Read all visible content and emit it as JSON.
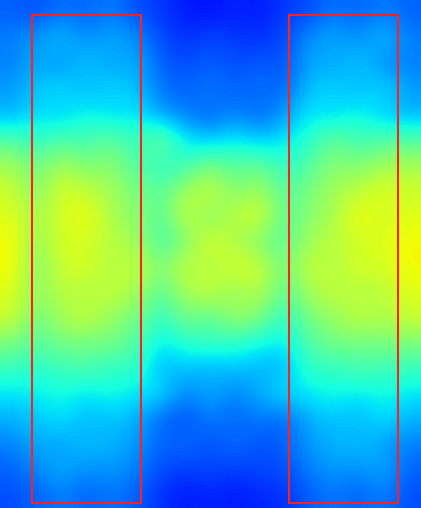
{
  "chart_data": {
    "type": "heatmap",
    "cells": [
      [
        0.22,
        0.2,
        0.24,
        0.22,
        0.25,
        0.2,
        0.18,
        0.15,
        0.14,
        0.16,
        0.15,
        0.18,
        0.2,
        0.24,
        0.22,
        0.25,
        0.22
      ],
      [
        0.25,
        0.28,
        0.32,
        0.26,
        0.3,
        0.27,
        0.2,
        0.17,
        0.2,
        0.18,
        0.17,
        0.2,
        0.27,
        0.3,
        0.26,
        0.32,
        0.25
      ],
      [
        0.25,
        0.3,
        0.26,
        0.33,
        0.28,
        0.3,
        0.22,
        0.2,
        0.22,
        0.2,
        0.22,
        0.2,
        0.3,
        0.28,
        0.33,
        0.26,
        0.25
      ],
      [
        0.28,
        0.32,
        0.35,
        0.3,
        0.34,
        0.32,
        0.24,
        0.22,
        0.25,
        0.22,
        0.24,
        0.22,
        0.32,
        0.34,
        0.3,
        0.35,
        0.28
      ],
      [
        0.3,
        0.35,
        0.32,
        0.38,
        0.33,
        0.36,
        0.28,
        0.25,
        0.22,
        0.26,
        0.22,
        0.28,
        0.36,
        0.33,
        0.38,
        0.32,
        0.3
      ],
      [
        0.45,
        0.4,
        0.45,
        0.42,
        0.48,
        0.4,
        0.5,
        0.35,
        0.32,
        0.36,
        0.32,
        0.35,
        0.4,
        0.48,
        0.42,
        0.45,
        0.45
      ],
      [
        0.55,
        0.48,
        0.55,
        0.5,
        0.52,
        0.45,
        0.4,
        0.42,
        0.5,
        0.45,
        0.48,
        0.4,
        0.45,
        0.52,
        0.5,
        0.55,
        0.55
      ],
      [
        0.6,
        0.5,
        0.62,
        0.58,
        0.55,
        0.5,
        0.45,
        0.55,
        0.6,
        0.5,
        0.55,
        0.45,
        0.5,
        0.55,
        0.58,
        0.62,
        0.6
      ],
      [
        0.62,
        0.55,
        0.6,
        0.65,
        0.55,
        0.52,
        0.45,
        0.6,
        0.5,
        0.58,
        0.62,
        0.45,
        0.52,
        0.55,
        0.65,
        0.6,
        0.62
      ],
      [
        0.65,
        0.52,
        0.62,
        0.6,
        0.58,
        0.55,
        0.42,
        0.5,
        0.62,
        0.55,
        0.5,
        0.45,
        0.55,
        0.58,
        0.6,
        0.62,
        0.65
      ],
      [
        0.65,
        0.5,
        0.6,
        0.62,
        0.55,
        0.6,
        0.5,
        0.6,
        0.55,
        0.62,
        0.6,
        0.48,
        0.6,
        0.55,
        0.62,
        0.6,
        0.65
      ],
      [
        0.62,
        0.52,
        0.58,
        0.55,
        0.6,
        0.55,
        0.45,
        0.55,
        0.6,
        0.52,
        0.58,
        0.45,
        0.55,
        0.6,
        0.55,
        0.58,
        0.62
      ],
      [
        0.6,
        0.48,
        0.55,
        0.6,
        0.52,
        0.5,
        0.4,
        0.5,
        0.45,
        0.55,
        0.5,
        0.4,
        0.5,
        0.52,
        0.6,
        0.55,
        0.6
      ],
      [
        0.5,
        0.45,
        0.5,
        0.48,
        0.5,
        0.45,
        0.35,
        0.4,
        0.42,
        0.4,
        0.38,
        0.35,
        0.45,
        0.5,
        0.48,
        0.5,
        0.5
      ],
      [
        0.42,
        0.4,
        0.42,
        0.45,
        0.4,
        0.42,
        0.3,
        0.32,
        0.3,
        0.32,
        0.3,
        0.3,
        0.42,
        0.4,
        0.45,
        0.42,
        0.42
      ],
      [
        0.35,
        0.36,
        0.38,
        0.35,
        0.38,
        0.35,
        0.35,
        0.25,
        0.3,
        0.25,
        0.3,
        0.35,
        0.35,
        0.38,
        0.35,
        0.38,
        0.35
      ],
      [
        0.3,
        0.32,
        0.35,
        0.3,
        0.32,
        0.3,
        0.22,
        0.2,
        0.25,
        0.22,
        0.25,
        0.22,
        0.3,
        0.32,
        0.3,
        0.35,
        0.3
      ],
      [
        0.25,
        0.3,
        0.28,
        0.32,
        0.3,
        0.28,
        0.22,
        0.24,
        0.2,
        0.24,
        0.2,
        0.22,
        0.28,
        0.3,
        0.32,
        0.28,
        0.25
      ],
      [
        0.22,
        0.26,
        0.3,
        0.26,
        0.28,
        0.25,
        0.2,
        0.18,
        0.2,
        0.18,
        0.2,
        0.2,
        0.25,
        0.28,
        0.26,
        0.3,
        0.22
      ],
      [
        0.2,
        0.22,
        0.25,
        0.22,
        0.24,
        0.22,
        0.17,
        0.15,
        0.16,
        0.15,
        0.16,
        0.17,
        0.22,
        0.24,
        0.22,
        0.25,
        0.2
      ]
    ],
    "color_range": [
      0,
      1
    ],
    "tick_labels": false
  }
}
